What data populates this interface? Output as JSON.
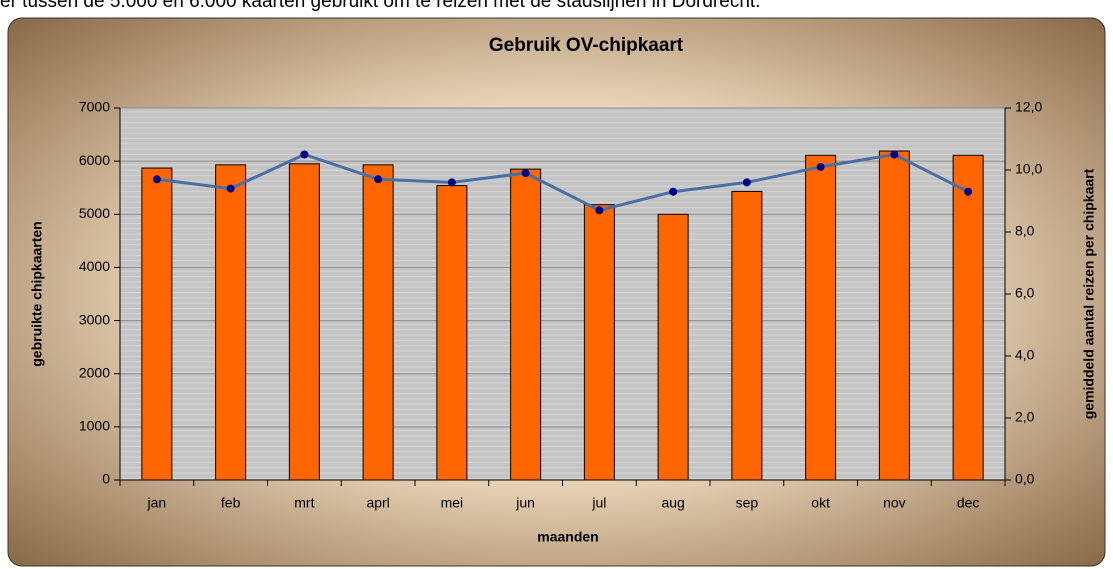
{
  "chart_data": {
    "type": "bar",
    "caption": "er tussen de 5.000 en 6.000 kaarten gebruikt om te reizen met de stadslijnen in Dordrecht.",
    "title": "Gebruik OV-chipkaart",
    "x_label": "maanden",
    "y_label": "gebruikte chipkaarten",
    "y2_label": "gemiddeld aantal  reizen per chipkaart",
    "categories": [
      "jan",
      "feb",
      "mrt",
      "aprl",
      "mei",
      "jun",
      "jul",
      "aug",
      "sep",
      "okt",
      "nov",
      "dec"
    ],
    "series": [
      {
        "type": "bar",
        "color": "#ff6600",
        "values": [
          5870,
          5930,
          5950,
          5930,
          5540,
          5850,
          5180,
          5000,
          5430,
          6110,
          6190,
          6110
        ]
      },
      {
        "type": "line",
        "axis": "y2",
        "color": "#4a6fa5",
        "marker_color": "#000080",
        "values": [
          9.7,
          9.4,
          10.5,
          9.7,
          9.6,
          9.9,
          8.7,
          9.3,
          9.6,
          10.1,
          10.5,
          9.3
        ]
      }
    ],
    "ylim": [
      0,
      7000
    ],
    "yticks": [
      0,
      1000,
      2000,
      3000,
      4000,
      5000,
      6000,
      7000
    ],
    "y2lim": [
      0,
      12
    ],
    "y2ticks": [
      {
        "value": 0,
        "label": "0,0"
      },
      {
        "value": 2,
        "label": "2,0"
      },
      {
        "value": 4,
        "label": "4,0"
      },
      {
        "value": 6,
        "label": "6,0"
      },
      {
        "value": 8,
        "label": "8,0"
      },
      {
        "value": 10,
        "label": "10,0"
      },
      {
        "value": 12,
        "label": "12,0"
      }
    ],
    "grid": true
  }
}
